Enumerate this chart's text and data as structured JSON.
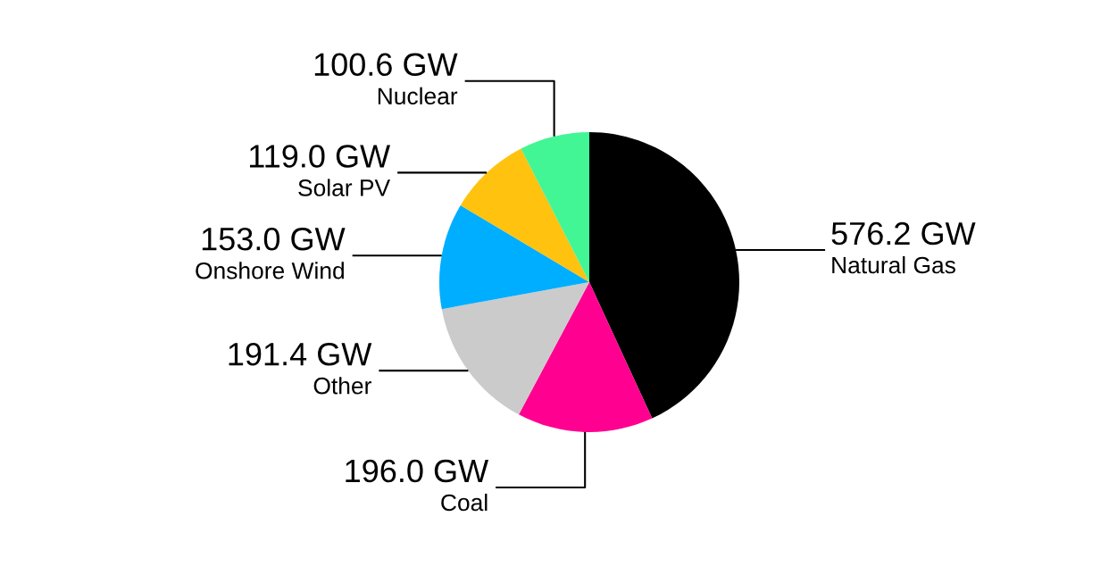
{
  "chart_data": {
    "type": "pie",
    "categories": [
      "Natural Gas",
      "Coal",
      "Other",
      "Onshore Wind",
      "Solar PV",
      "Nuclear"
    ],
    "values": [
      576.2,
      196.0,
      191.4,
      153.0,
      119.0,
      100.6
    ],
    "colors": [
      "#000000",
      "#ff0090",
      "#cbcbcb",
      "#00aeff",
      "#ffc20e",
      "#42f595"
    ],
    "value_labels": [
      "576.2 GW",
      "196.0 GW",
      "191.4 GW",
      "153.0 GW",
      "119.0 GW",
      "100.6 GW"
    ]
  }
}
